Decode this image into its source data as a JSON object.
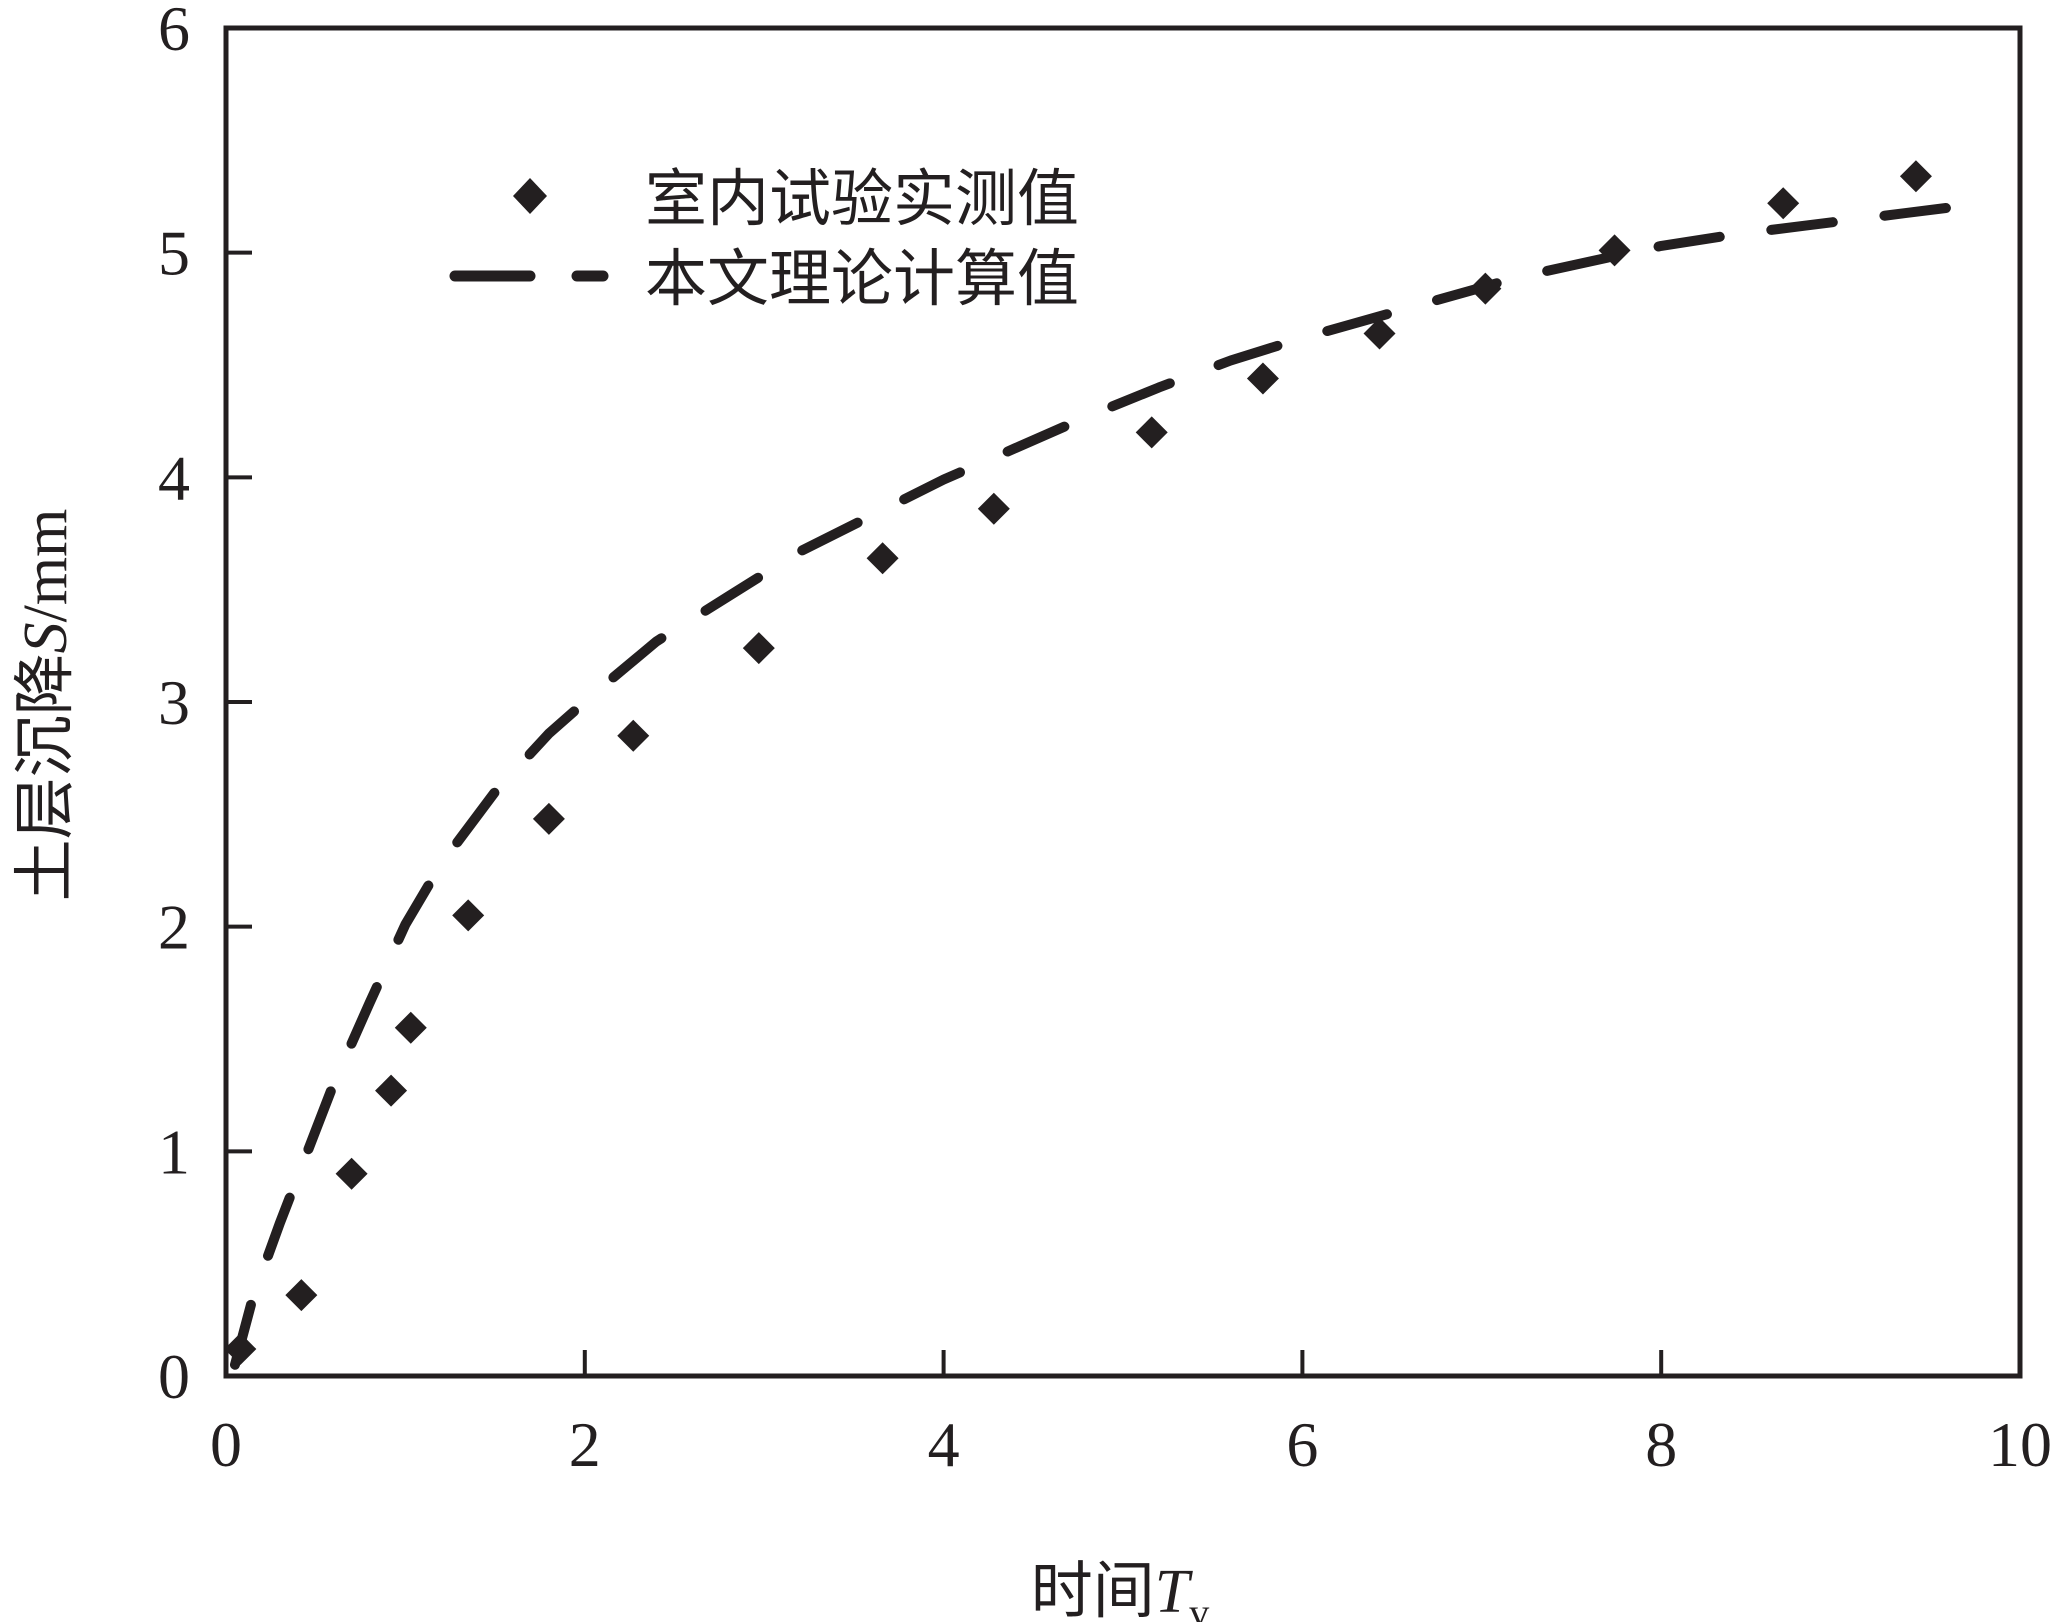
{
  "chart_data": {
    "type": "scatter",
    "xlabel_main": "时间",
    "xlabel_symbol": "T",
    "xlabel_sub": "v",
    "ylabel_main": "土层沉降",
    "ylabel_symbol": "S",
    "ylabel_unit": "/mm",
    "xlim": [
      0,
      10
    ],
    "ylim": [
      0,
      6
    ],
    "xticks": [
      0,
      2,
      4,
      6,
      8,
      10
    ],
    "yticks": [
      0,
      1,
      2,
      3,
      4,
      5,
      6
    ],
    "grid": false,
    "legend_position": "top-left",
    "series": [
      {
        "name": "室内试验实测值",
        "style": "diamond-markers",
        "color": "#231f20",
        "x": [
          0.08,
          0.42,
          0.7,
          0.92,
          1.03,
          1.35,
          1.8,
          2.27,
          2.97,
          3.66,
          4.28,
          5.16,
          5.78,
          6.43,
          7.02,
          7.74,
          8.68,
          9.42
        ],
        "y": [
          0.12,
          0.36,
          0.9,
          1.27,
          1.55,
          2.05,
          2.48,
          2.85,
          3.24,
          3.64,
          3.86,
          4.2,
          4.44,
          4.64,
          4.84,
          5.01,
          5.22,
          5.34
        ]
      },
      {
        "name": "本文理论计算值",
        "style": "dashed-line",
        "color": "#231f20",
        "x": [
          0.05,
          0.15,
          0.3,
          0.45,
          0.6,
          0.8,
          1.0,
          1.2,
          1.5,
          1.8,
          2.1,
          2.4,
          2.8,
          3.2,
          3.6,
          4.0,
          4.4,
          4.8,
          5.2,
          5.6,
          6.0,
          6.4,
          6.8,
          7.2,
          7.6,
          8.0,
          8.4,
          8.8,
          9.2,
          9.7
        ],
        "y": [
          0.05,
          0.35,
          0.68,
          0.99,
          1.3,
          1.66,
          2.01,
          2.28,
          2.6,
          2.86,
          3.07,
          3.27,
          3.47,
          3.67,
          3.83,
          3.99,
          4.13,
          4.27,
          4.4,
          4.52,
          4.62,
          4.71,
          4.8,
          4.89,
          4.96,
          5.03,
          5.08,
          5.12,
          5.16,
          5.21
        ]
      }
    ]
  }
}
